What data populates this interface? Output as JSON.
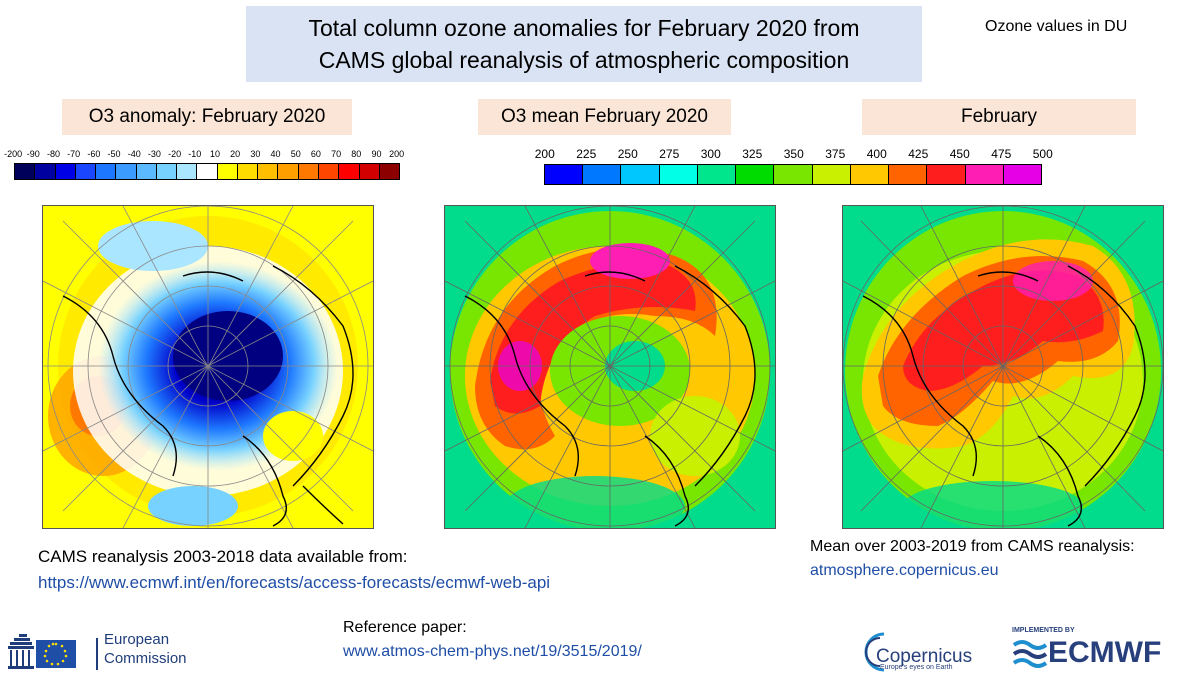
{
  "header": {
    "title_line1": "Total column ozone anomalies for February 2020 from",
    "title_line2": "CAMS global reanalysis of atmospheric composition",
    "units_note": "Ozone values in DU"
  },
  "panels": [
    {
      "title": "O3 anomaly: February 2020"
    },
    {
      "title": "O3 mean February 2020"
    },
    {
      "title": "February"
    }
  ],
  "colorbar_anomaly": {
    "labels": [
      "-200",
      "-90",
      "-80",
      "-70",
      "-60",
      "-50",
      "-40",
      "-30",
      "-20",
      "-10",
      "10",
      "20",
      "30",
      "40",
      "50",
      "60",
      "70",
      "80",
      "90",
      "200"
    ],
    "colors": [
      "#00005a",
      "#0000a0",
      "#0000e6",
      "#1a46ff",
      "#1e78ff",
      "#3c9bff",
      "#5ab9ff",
      "#78d2ff",
      "#aae6ff",
      "#ffffff",
      "#ffff00",
      "#ffdc00",
      "#ffbe00",
      "#ffa000",
      "#ff7800",
      "#ff4600",
      "#ff0000",
      "#d20000",
      "#8c0000"
    ]
  },
  "colorbar_mean": {
    "labels": [
      "200",
      "225",
      "250",
      "275",
      "300",
      "325",
      "350",
      "375",
      "400",
      "425",
      "450",
      "475",
      "500"
    ],
    "colors": [
      "#0000ff",
      "#0078ff",
      "#00c8ff",
      "#00ffe6",
      "#00e68c",
      "#00dc00",
      "#78e600",
      "#c8f000",
      "#ffc800",
      "#ff6400",
      "#ff1e1e",
      "#ff1eb4",
      "#e600e6"
    ]
  },
  "footer": {
    "available_label": "CAMS reanalysis 2003-2018 data available from:",
    "available_link": "https://www.ecmwf.int/en/forecasts/access-forecasts/ecmwf-web-api",
    "mean_label": "Mean over 2003-2019 from CAMS reanalysis:",
    "mean_link": "atmosphere.copernicus.eu",
    "reference_label": "Reference paper:",
    "reference_link": "www.atmos-chem-phys.net/19/3515/2019/"
  },
  "logos": {
    "ec_line1": "European",
    "ec_line2": "Commission",
    "copernicus": "Copernicus",
    "copernicus_tag": "Europe's eyes on Earth",
    "ecmwf_implemented": "IMPLEMENTED BY",
    "ecmwf": "ECMWF"
  }
}
